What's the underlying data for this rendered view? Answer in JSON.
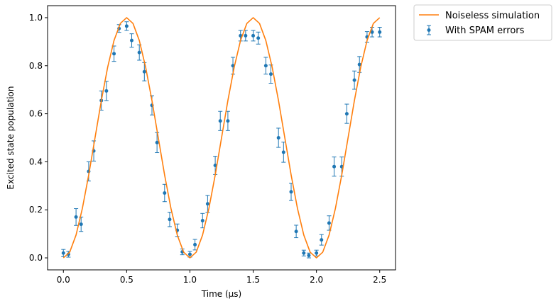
{
  "chart_data": {
    "type": "line",
    "xlabel": "Time (μs)",
    "ylabel": "Excited state population",
    "xlim": [
      -0.125,
      2.625
    ],
    "ylim": [
      -0.05,
      1.05
    ],
    "xticks": [
      0.0,
      0.5,
      1.0,
      1.5,
      2.0,
      2.5
    ],
    "xtick_labels": [
      "0.0",
      "0.5",
      "1.0",
      "1.5",
      "2.0",
      "2.5"
    ],
    "yticks": [
      0.0,
      0.2,
      0.4,
      0.6,
      0.8,
      1.0
    ],
    "ytick_labels": [
      "0.0",
      "0.2",
      "0.4",
      "0.6",
      "0.8",
      "1.0"
    ],
    "grid": false,
    "legend_position": "outside-top-right",
    "series": [
      {
        "name": "Noiseless simulation",
        "kind": "line",
        "color": "#ff7f0e",
        "x": [
          0.0,
          0.05,
          0.1,
          0.15,
          0.2,
          0.25,
          0.3,
          0.35,
          0.4,
          0.45,
          0.5,
          0.55,
          0.6,
          0.65,
          0.7,
          0.75,
          0.8,
          0.85,
          0.9,
          0.95,
          1.0,
          1.05,
          1.1,
          1.15,
          1.2,
          1.25,
          1.3,
          1.35,
          1.4,
          1.45,
          1.5,
          1.55,
          1.6,
          1.65,
          1.7,
          1.75,
          1.8,
          1.85,
          1.9,
          1.95,
          2.0,
          2.05,
          2.1,
          2.15,
          2.2,
          2.25,
          2.3,
          2.35,
          2.4,
          2.45,
          2.5
        ],
        "y": [
          0.0,
          0.024,
          0.095,
          0.206,
          0.345,
          0.5,
          0.655,
          0.794,
          0.905,
          0.976,
          1.0,
          0.976,
          0.905,
          0.794,
          0.655,
          0.5,
          0.345,
          0.206,
          0.095,
          0.024,
          0.0,
          0.024,
          0.095,
          0.206,
          0.345,
          0.5,
          0.655,
          0.794,
          0.905,
          0.976,
          1.0,
          0.976,
          0.905,
          0.794,
          0.655,
          0.5,
          0.345,
          0.206,
          0.095,
          0.024,
          0.0,
          0.024,
          0.095,
          0.206,
          0.345,
          0.5,
          0.655,
          0.794,
          0.905,
          0.976,
          1.0
        ]
      },
      {
        "name": "With SPAM errors",
        "kind": "errorbar",
        "color": "#1f77b4",
        "x": [
          0.0,
          0.04,
          0.1,
          0.14,
          0.2,
          0.24,
          0.3,
          0.34,
          0.4,
          0.44,
          0.5,
          0.54,
          0.6,
          0.64,
          0.7,
          0.74,
          0.8,
          0.84,
          0.9,
          0.94,
          1.0,
          1.04,
          1.1,
          1.14,
          1.2,
          1.24,
          1.3,
          1.34,
          1.4,
          1.44,
          1.5,
          1.54,
          1.6,
          1.64,
          1.7,
          1.74,
          1.8,
          1.84,
          1.9,
          1.94,
          2.0,
          2.04,
          2.1,
          2.14,
          2.2,
          2.24,
          2.3,
          2.34,
          2.4,
          2.44,
          2.5
        ],
        "y": [
          0.02,
          0.015,
          0.17,
          0.14,
          0.36,
          0.445,
          0.655,
          0.695,
          0.85,
          0.955,
          0.965,
          0.905,
          0.855,
          0.775,
          0.635,
          0.48,
          0.27,
          0.16,
          0.115,
          0.025,
          0.015,
          0.055,
          0.155,
          0.225,
          0.385,
          0.57,
          0.57,
          0.8,
          0.925,
          0.925,
          0.925,
          0.915,
          0.8,
          0.765,
          0.5,
          0.44,
          0.275,
          0.11,
          0.02,
          0.01,
          0.02,
          0.075,
          0.145,
          0.38,
          0.38,
          0.6,
          0.74,
          0.805,
          0.92,
          0.94,
          0.94
        ],
        "yerr": [
          0.015,
          0.012,
          0.035,
          0.03,
          0.04,
          0.042,
          0.04,
          0.04,
          0.032,
          0.016,
          0.018,
          0.028,
          0.032,
          0.038,
          0.04,
          0.042,
          0.036,
          0.03,
          0.026,
          0.012,
          0.012,
          0.022,
          0.03,
          0.035,
          0.038,
          0.04,
          0.04,
          0.035,
          0.022,
          0.022,
          0.022,
          0.025,
          0.035,
          0.038,
          0.04,
          0.042,
          0.036,
          0.026,
          0.012,
          0.01,
          0.012,
          0.022,
          0.03,
          0.04,
          0.04,
          0.04,
          0.038,
          0.033,
          0.022,
          0.02,
          0.02
        ]
      }
    ]
  }
}
